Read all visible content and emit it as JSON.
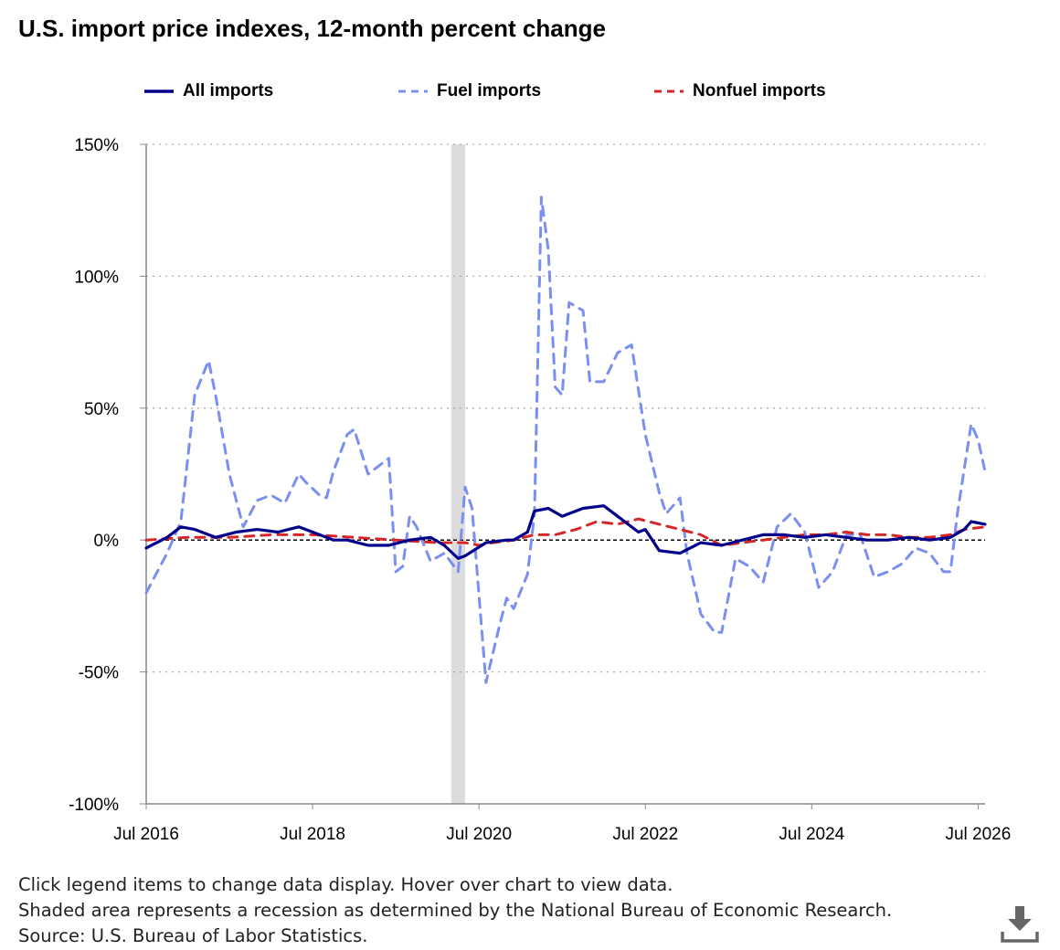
{
  "chart_data": {
    "type": "line",
    "title": "U.S. import price indexes, 12-month percent change",
    "x_tick_labels": [
      "Jul 2016",
      "Jul 2018",
      "Jul 2020",
      "Jul 2022",
      "Jul 2024",
      "Jul 2026"
    ],
    "y_tick_labels": [
      "150%",
      "100%",
      "50%",
      "0%",
      "-50%",
      "-100%"
    ],
    "ylim": [
      -100,
      150
    ],
    "x_range": [
      "2016-07",
      "2026-08"
    ],
    "grid": "horizontal dotted",
    "legend_position": "top",
    "recession": {
      "start": "2020-03",
      "end": "2020-04"
    },
    "series": [
      {
        "name": "All imports",
        "color": "#00008b",
        "style": "solid",
        "x": [
          "2016-07",
          "2016-10",
          "2016-12",
          "2017-02",
          "2017-05",
          "2017-08",
          "2017-11",
          "2018-02",
          "2018-05",
          "2018-06",
          "2018-09",
          "2018-10",
          "2018-12",
          "2019-03",
          "2019-06",
          "2019-09",
          "2019-12",
          "2020-02",
          "2020-04",
          "2020-05",
          "2020-08",
          "2020-11",
          "2020-12",
          "2021-02",
          "2021-03",
          "2021-05",
          "2021-07",
          "2021-08",
          "2021-10",
          "2022-01",
          "2022-03",
          "2022-06",
          "2022-07",
          "2022-09",
          "2022-12",
          "2023-03",
          "2023-06",
          "2023-09",
          "2023-12",
          "2024-03",
          "2024-06",
          "2024-09",
          "2024-12",
          "2025-03",
          "2025-06",
          "2025-09",
          "2025-12",
          "2026-03",
          "2026-05",
          "2026-06",
          "2026-08"
        ],
        "y": [
          -3,
          1,
          5,
          4,
          1,
          3,
          4,
          3,
          5,
          4,
          1,
          0,
          0,
          -2,
          -2,
          0,
          1,
          -2,
          -7,
          -6,
          -1,
          0,
          0,
          3,
          11,
          12,
          9,
          10,
          12,
          13,
          9,
          3,
          4,
          -4,
          -5,
          -1,
          -2,
          0,
          2,
          2,
          1,
          2,
          1,
          0,
          0,
          1,
          0,
          1,
          4,
          7,
          6
        ]
      },
      {
        "name": "Fuel imports",
        "color": "#7b8ff0",
        "style": "dashed",
        "x": [
          "2016-07",
          "2016-10",
          "2016-12",
          "2017-02",
          "2017-04",
          "2017-05",
          "2017-07",
          "2017-09",
          "2017-11",
          "2018-01",
          "2018-03",
          "2018-05",
          "2018-06",
          "2018-08",
          "2018-09",
          "2018-10",
          "2018-12",
          "2019-01",
          "2019-03",
          "2019-06",
          "2019-07",
          "2019-08",
          "2019-09",
          "2019-10",
          "2019-12",
          "2020-02",
          "2020-04",
          "2020-05",
          "2020-06",
          "2020-08",
          "2020-10",
          "2020-11",
          "2020-12",
          "2021-02",
          "2021-03",
          "2021-04",
          "2021-05",
          "2021-06",
          "2021-07",
          "2021-08",
          "2021-10",
          "2021-11",
          "2022-01",
          "2022-03",
          "2022-05",
          "2022-07",
          "2022-09",
          "2022-10",
          "2022-12",
          "2023-01",
          "2023-03",
          "2023-05",
          "2023-06",
          "2023-08",
          "2023-10",
          "2023-12",
          "2024-02",
          "2024-04",
          "2024-06",
          "2024-08",
          "2024-10",
          "2024-12",
          "2025-02",
          "2025-04",
          "2025-06",
          "2025-08",
          "2025-10",
          "2025-12",
          "2026-02",
          "2026-03",
          "2026-04",
          "2026-06",
          "2026-07",
          "2026-08"
        ],
        "y": [
          -20,
          -5,
          7,
          55,
          68,
          55,
          25,
          5,
          15,
          17,
          14,
          25,
          22,
          17,
          16,
          26,
          40,
          42,
          25,
          31,
          -12,
          -10,
          9,
          5,
          -8,
          -5,
          -12,
          20,
          12,
          -54,
          -32,
          -22,
          -26,
          -13,
          10,
          130,
          110,
          58,
          55,
          90,
          87,
          60,
          60,
          71,
          74,
          40,
          18,
          10,
          16,
          -5,
          -28,
          -35,
          -35,
          -7,
          -10,
          -16,
          5,
          10,
          3,
          -18,
          -12,
          2,
          2,
          -14,
          -12,
          -9,
          -3,
          -5,
          -12,
          -12,
          10,
          44,
          38,
          26
        ]
      },
      {
        "name": "Nonfuel imports",
        "color": "#d62728",
        "style": "dashed",
        "x": [
          "2016-07",
          "2017-01",
          "2017-07",
          "2018-01",
          "2018-07",
          "2019-01",
          "2019-07",
          "2020-01",
          "2020-05",
          "2020-07",
          "2020-09",
          "2020-12",
          "2021-03",
          "2021-06",
          "2021-09",
          "2021-12",
          "2022-03",
          "2022-06",
          "2022-09",
          "2022-12",
          "2023-03",
          "2023-06",
          "2023-09",
          "2023-12",
          "2024-03",
          "2024-06",
          "2024-09",
          "2024-12",
          "2025-03",
          "2025-06",
          "2025-09",
          "2025-12",
          "2026-03",
          "2026-05",
          "2026-08"
        ],
        "y": [
          0,
          1,
          1,
          2,
          2,
          1,
          0,
          -1,
          -1,
          -2,
          -1,
          0,
          2,
          2,
          4,
          7,
          6,
          8,
          6,
          4,
          2,
          -2,
          -1,
          0,
          1,
          2,
          2,
          3,
          2,
          2,
          1,
          1,
          2,
          4,
          5
        ]
      }
    ]
  },
  "notes": [
    "Click legend items to change data display. Hover over chart to view data.",
    "Shaded area represents a recession as determined by the National Bureau of Economic Research.",
    "Source: U.S. Bureau of Labor Statistics."
  ],
  "icons": {
    "download": "download-icon"
  }
}
